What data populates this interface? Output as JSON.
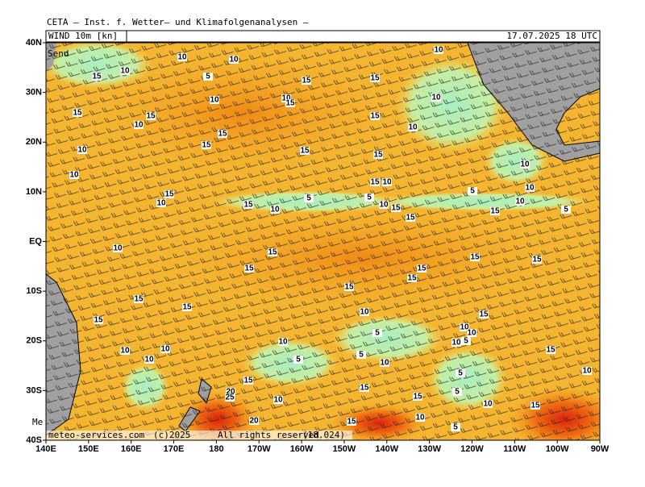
{
  "header": {
    "title": "CETA — Inst. f. Wetter— und Klimafolgenanalysen —",
    "field": "WIND 10m [kn]",
    "valid": "17.07.2025 18 UTC",
    "side_left": "Send",
    "side_bottom": "Me"
  },
  "axes": {
    "lat": [
      "40N",
      "30N",
      "20N",
      "10N",
      "EQ",
      "10S",
      "20S",
      "30S",
      "40S"
    ],
    "lon": [
      "140E",
      "150E",
      "160E",
      "170E",
      "180",
      "170W",
      "160W",
      "150W",
      "140W",
      "130W",
      "120W",
      "110W",
      "100W",
      "90W"
    ]
  },
  "contour_labels": [
    "10",
    "10",
    "10",
    "15",
    "5",
    "15",
    "15",
    "10",
    "10",
    "10",
    "15",
    "10",
    "15",
    "15",
    "10",
    "15",
    "10",
    "15",
    "15",
    "15",
    "10",
    "15",
    "10",
    "10",
    "15",
    "10",
    "15",
    "5",
    "5",
    "5",
    "10",
    "10",
    "15",
    "10",
    "10",
    "15",
    "15",
    "15",
    "5",
    "10",
    "10",
    "15",
    "15",
    "15",
    "15",
    "15",
    "15",
    "15",
    "15",
    "15",
    "10",
    "15",
    "15",
    "10",
    "10",
    "5",
    "10",
    "10",
    "5",
    "10",
    "10",
    "15",
    "5",
    "5",
    "10",
    "10",
    "10",
    "5",
    "15",
    "15",
    "5",
    "20",
    "25",
    "10",
    "15",
    "10",
    "15",
    "20",
    "15",
    "10",
    "5"
  ],
  "footer": {
    "site": "meteo-services.com",
    "copyright": "(c)2025",
    "rights": "All rights reserved",
    "version": "(18.024)"
  }
}
